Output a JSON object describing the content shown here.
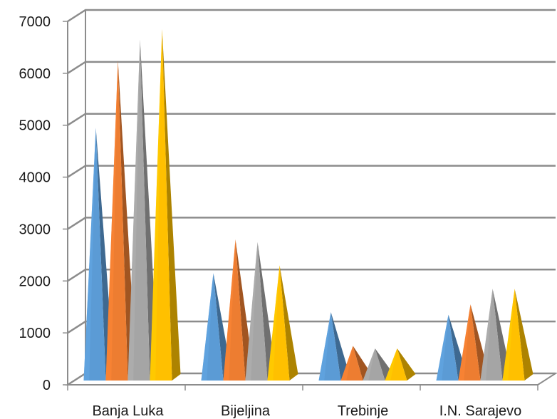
{
  "chart_data": {
    "type": "bar",
    "style": "3d-pyramid",
    "title": "",
    "xlabel": "",
    "ylabel": "",
    "categories": [
      "Banja Luka",
      "Bijeljina",
      "Trebinje",
      "I.N. Sarajevo"
    ],
    "series": [
      {
        "color": "#5B9BD5",
        "values": [
          4950,
          2150,
          1400,
          1350
        ]
      },
      {
        "color": "#ED7D31",
        "values": [
          6250,
          2800,
          750,
          1550
        ]
      },
      {
        "color": "#A5A5A5",
        "values": [
          6650,
          2750,
          700,
          1850
        ]
      },
      {
        "color": "#FFC000",
        "values": [
          6850,
          2300,
          700,
          1850
        ]
      }
    ],
    "yticks": [
      "0",
      "1000",
      "2000",
      "3000",
      "4000",
      "5000",
      "6000",
      "7000"
    ],
    "ylim": [
      0,
      7000
    ],
    "grid": true,
    "legend": "none"
  }
}
